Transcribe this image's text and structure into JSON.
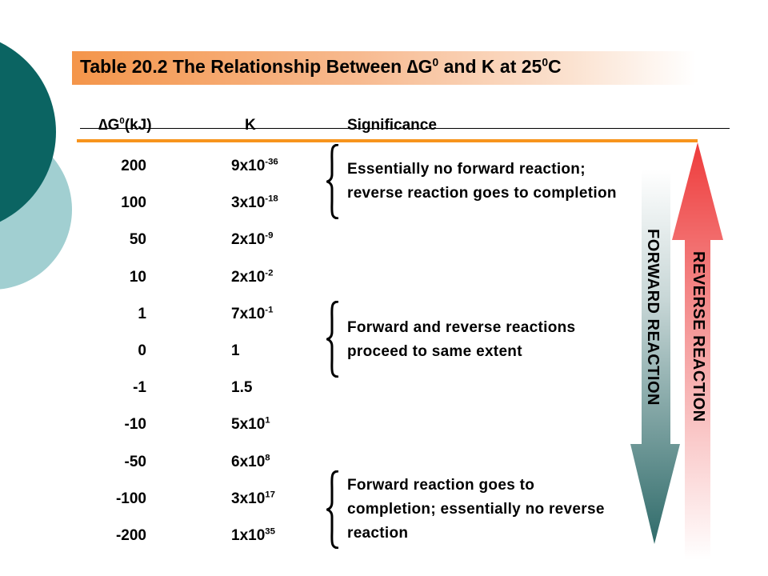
{
  "colors": {
    "title_bar": "#f4954a",
    "orange_line": "#f7941d",
    "circle_dark": "#0b6462",
    "circle_light": "#a1cfd1",
    "forward_arrow": "#2f6b6a",
    "reverse_arrow": "#ee3b3b"
  },
  "title": {
    "prefix": "Table 20.2   The Relationship Between ",
    "delta": "∆",
    "g": "G",
    "g_sup": "0",
    "middle": " and K at 25",
    "t_sup": "0",
    "suffix": "C"
  },
  "headers": {
    "dg_delta": "∆",
    "dg_g": "G",
    "dg_sup": "0",
    "dg_unit": "(kJ)",
    "k": "K",
    "significance": "Significance"
  },
  "rows": [
    {
      "dg": "200",
      "k_base": "9x10",
      "k_exp": "-36"
    },
    {
      "dg": "100",
      "k_base": "3x10",
      "k_exp": "-18"
    },
    {
      "dg": "50",
      "k_base": "2x10",
      "k_exp": "-9"
    },
    {
      "dg": "10",
      "k_base": "2x10",
      "k_exp": "-2"
    },
    {
      "dg": "1",
      "k_base": "7x10",
      "k_exp": "-1"
    },
    {
      "dg": "0",
      "k_base": "1",
      "k_exp": ""
    },
    {
      "dg": "-1",
      "k_base": "1.5",
      "k_exp": ""
    },
    {
      "dg": "-10",
      "k_base": "5x10",
      "k_exp": "1"
    },
    {
      "dg": "-50",
      "k_base": "6x10",
      "k_exp": "8"
    },
    {
      "dg": "-100",
      "k_base": "3x10",
      "k_exp": "17"
    },
    {
      "dg": "-200",
      "k_base": "1x10",
      "k_exp": "35"
    }
  ],
  "significance": [
    {
      "lines": [
        "Essentially no forward reaction;",
        "reverse reaction goes to completion"
      ]
    },
    {
      "lines": [
        "Forward and reverse reactions",
        "proceed to same extent"
      ]
    },
    {
      "lines": [
        "Forward reaction goes to",
        "completion; essentially no reverse",
        "reaction"
      ]
    }
  ],
  "arrows": {
    "forward_label": "FORWARD REACTION",
    "reverse_label": "REVERSE REACTION"
  }
}
